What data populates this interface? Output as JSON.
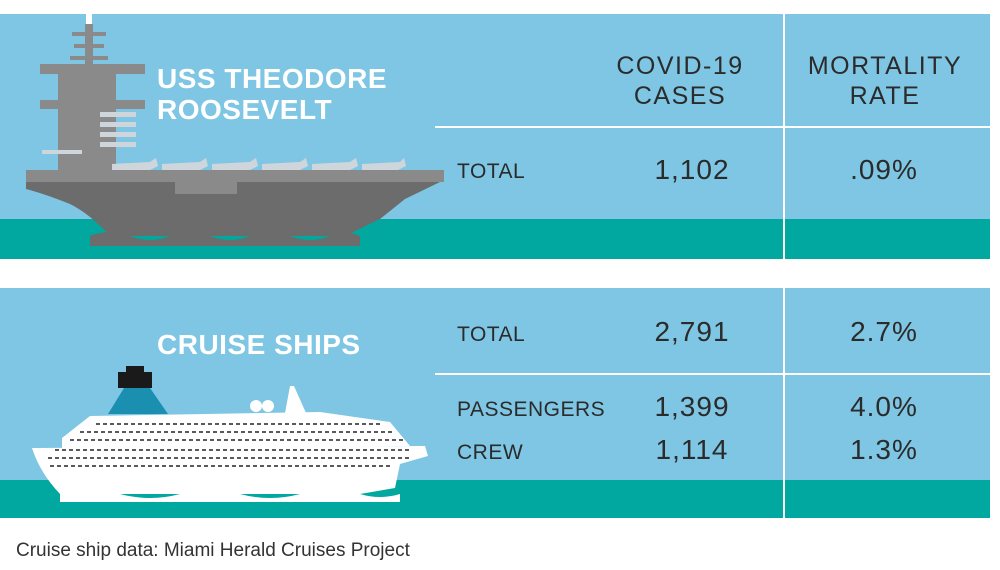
{
  "colors": {
    "panel": "#7ec6e3",
    "sea": "#00a89f",
    "title_text": "#ffffff",
    "text": "#2b2b2b"
  },
  "headers": {
    "cases": [
      "COVID-19",
      "CASES"
    ],
    "mortality": [
      "MORTALITY",
      "RATE"
    ]
  },
  "chart_data": {
    "type": "table",
    "columns": [
      "COVID-19 CASES",
      "MORTALITY RATE"
    ],
    "groups": [
      {
        "title": [
          "USS THEODORE",
          "ROOSEVELT"
        ],
        "icon": "aircraft-carrier-icon",
        "rows": [
          {
            "label": "TOTAL",
            "cases": "1,102",
            "rate": ".09%"
          }
        ]
      },
      {
        "title": [
          "CRUISE SHIPS"
        ],
        "icon": "cruise-ship-icon",
        "rows": [
          {
            "label": "TOTAL",
            "cases": "2,791",
            "rate": "2.7%"
          },
          {
            "label": "PASSENGERS",
            "cases": "1,399",
            "rate": "4.0%"
          },
          {
            "label": "CREW",
            "cases": "1,114",
            "rate": "1.3%"
          }
        ]
      }
    ]
  },
  "source": "Cruise ship data: Miami Herald Cruises Project"
}
